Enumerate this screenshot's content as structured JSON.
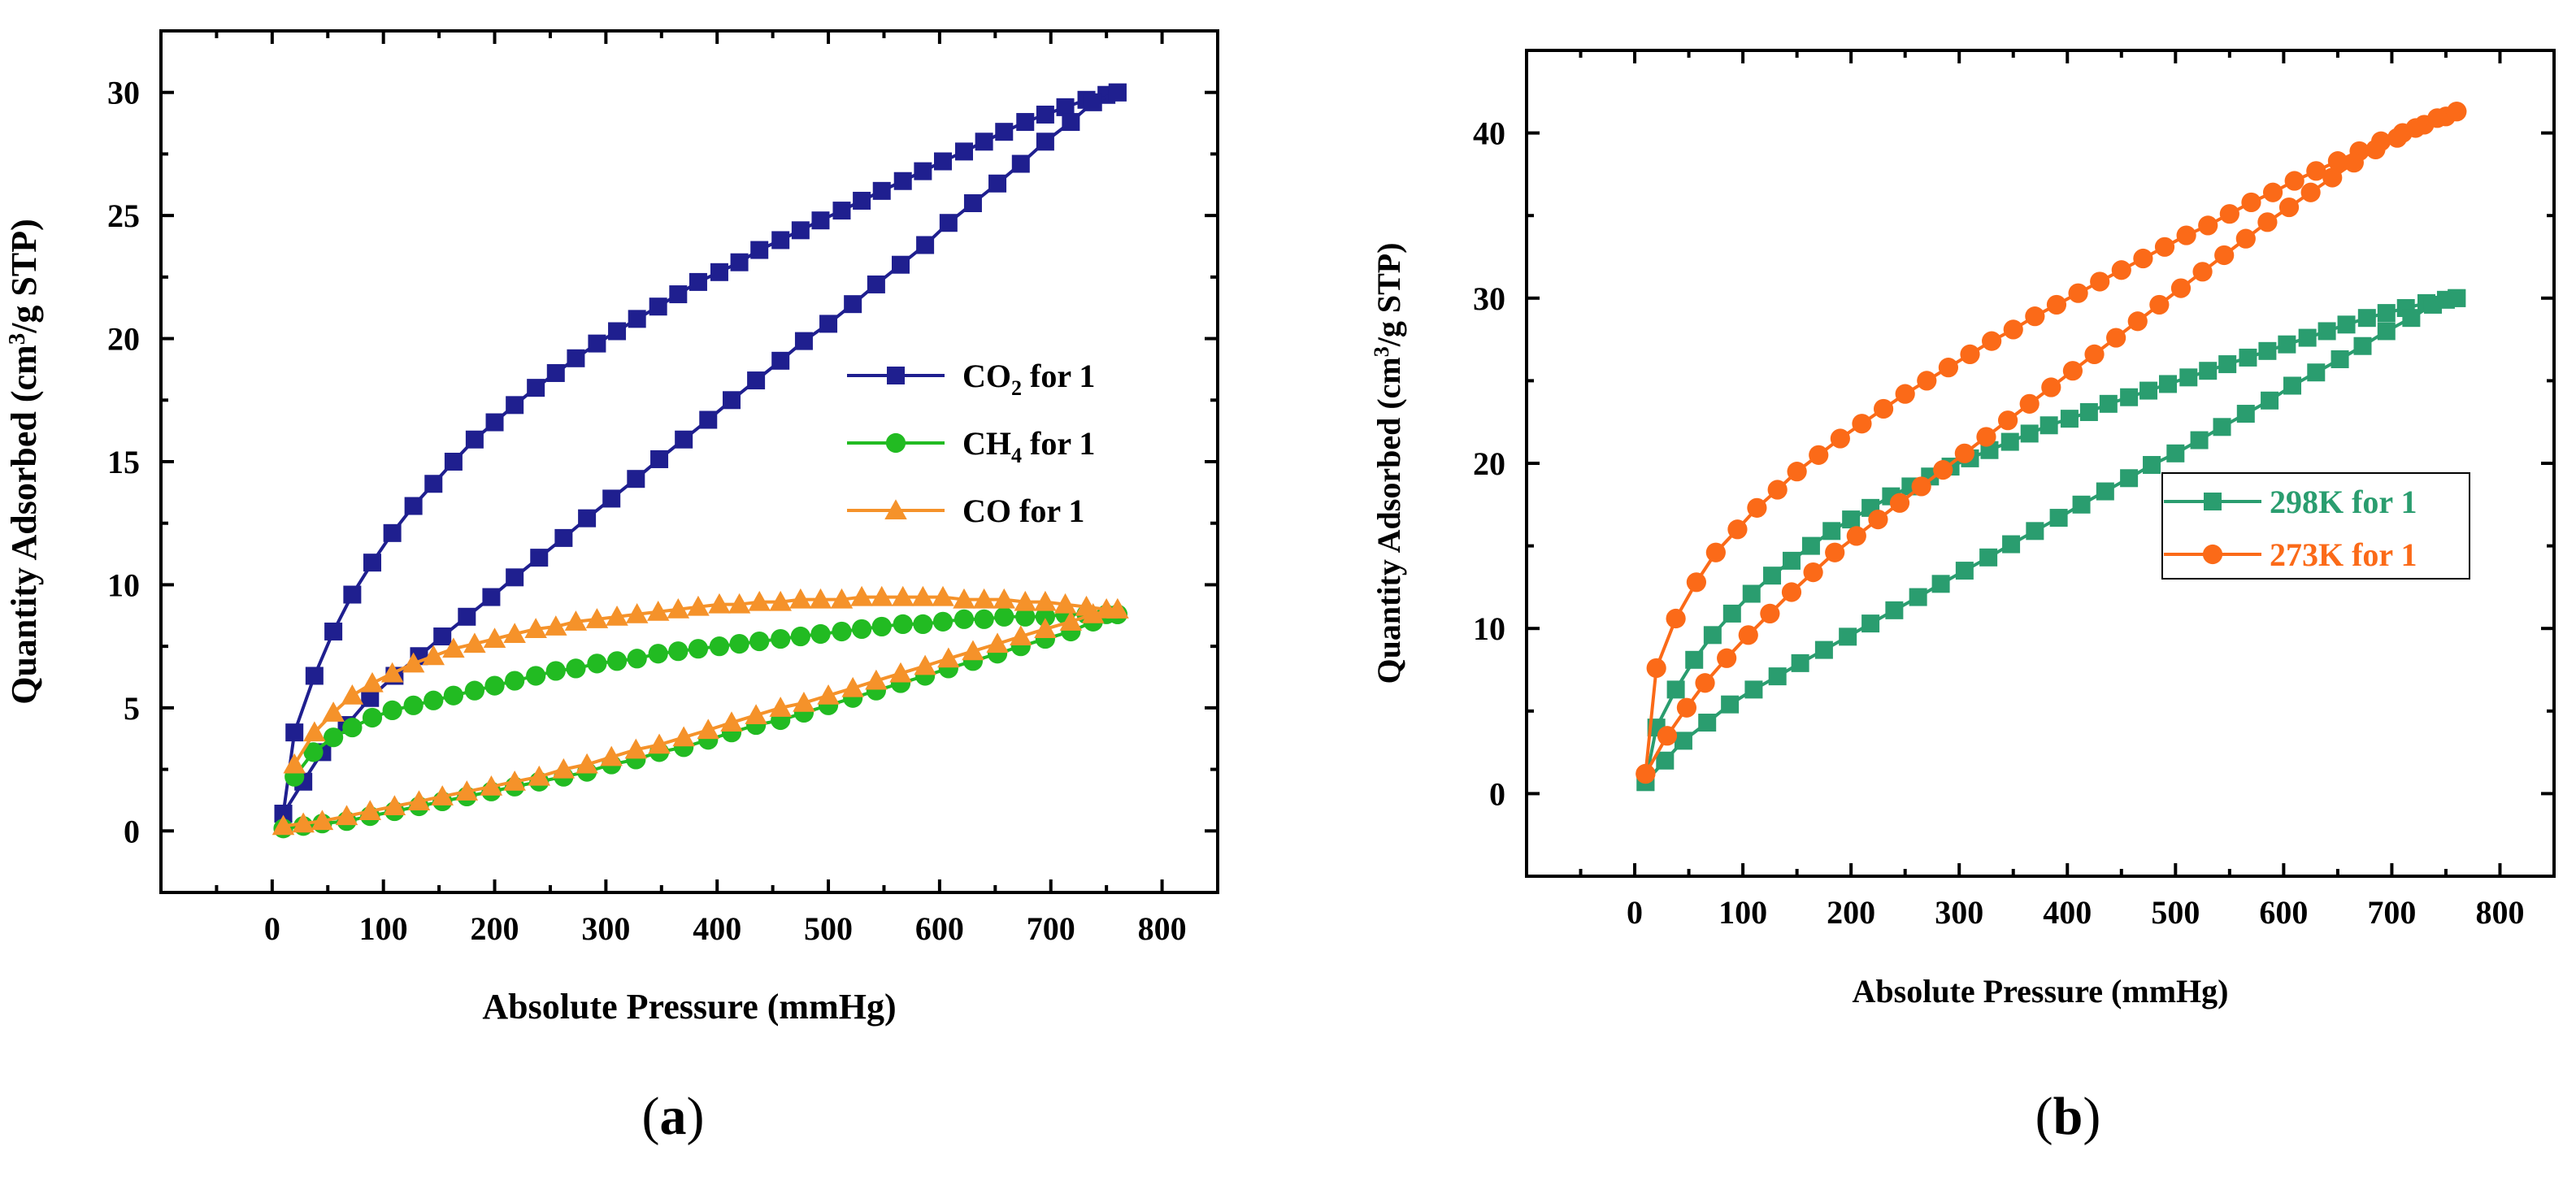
{
  "chart_data": [
    {
      "type": "line",
      "panel_label": "(a)",
      "title": "",
      "xlabel": "Absolute Pressure (mmHg)",
      "ylabel": "Quantity Adsorbed (cm³/g STP)",
      "ylabel_parts": {
        "pre": "Quantity Adsorbed (cm",
        "sup": "3",
        "post": "/g STP)"
      },
      "xlim": [
        -100,
        850
      ],
      "ylim": [
        -2.5,
        32.5
      ],
      "xticks": [
        0,
        100,
        200,
        300,
        400,
        500,
        600,
        700,
        800
      ],
      "yticks": [
        0,
        5,
        10,
        15,
        20,
        25,
        30
      ],
      "legend_position": "center-right",
      "series": [
        {
          "name": "CO2 for 1",
          "legend": {
            "pre": "CO",
            "sub": "2",
            "post": " for 1"
          },
          "marker": "square",
          "color": "#1f1f8f",
          "adsorption": {
            "x": [
              10,
              20,
              38,
              55,
              72,
              90,
              108,
              127,
              145,
              163,
              182,
              200,
              218,
              237,
              255,
              273,
              292,
              310,
              328,
              347,
              365,
              383,
              402,
              420,
              438,
              457,
              475,
              493,
              512,
              530,
              548,
              567,
              585,
              603,
              622,
              640,
              658,
              677,
              695,
              713,
              732,
              750,
              760
            ],
            "y": [
              0.7,
              4.0,
              6.3,
              8.1,
              9.6,
              10.9,
              12.1,
              13.2,
              14.1,
              15.0,
              15.9,
              16.6,
              17.3,
              18.0,
              18.6,
              19.2,
              19.8,
              20.3,
              20.8,
              21.3,
              21.8,
              22.3,
              22.7,
              23.1,
              23.6,
              24.0,
              24.4,
              24.8,
              25.2,
              25.6,
              26.0,
              26.4,
              26.8,
              27.2,
              27.6,
              28.0,
              28.4,
              28.8,
              29.1,
              29.4,
              29.7,
              29.9,
              30.0
            ]
          },
          "desorption": {
            "x": [
              760,
              738,
              718,
              695,
              673,
              652,
              630,
              608,
              587,
              565,
              543,
              522,
              500,
              478,
              457,
              435,
              413,
              392,
              370,
              348,
              327,
              305,
              283,
              262,
              240,
              218,
              197,
              175,
              153,
              132,
              110,
              88,
              67,
              45,
              28,
              10
            ],
            "y": [
              30.0,
              29.6,
              28.8,
              28.0,
              27.1,
              26.3,
              25.5,
              24.7,
              23.8,
              23.0,
              22.2,
              21.4,
              20.6,
              19.9,
              19.1,
              18.3,
              17.5,
              16.7,
              15.9,
              15.1,
              14.3,
              13.5,
              12.7,
              11.9,
              11.1,
              10.3,
              9.5,
              8.7,
              7.9,
              7.1,
              6.3,
              5.4,
              4.3,
              3.2,
              2.0,
              0.7
            ]
          }
        },
        {
          "name": "CH4 for 1",
          "legend": {
            "pre": "CH",
            "sub": "4",
            "post": " for 1"
          },
          "marker": "circle",
          "color": "#22bb22",
          "adsorption": {
            "x": [
              20,
              37,
              55,
              72,
              90,
              108,
              127,
              145,
              163,
              182,
              200,
              218,
              237,
              255,
              273,
              292,
              310,
              328,
              347,
              365,
              383,
              402,
              420,
              438,
              457,
              475,
              493,
              512,
              530,
              548,
              567,
              585,
              603,
              622,
              640,
              658,
              677,
              695,
              713,
              732,
              750,
              760
            ],
            "y": [
              2.2,
              3.2,
              3.8,
              4.2,
              4.6,
              4.9,
              5.1,
              5.3,
              5.5,
              5.7,
              5.9,
              6.1,
              6.3,
              6.5,
              6.6,
              6.8,
              6.9,
              7.0,
              7.2,
              7.3,
              7.4,
              7.5,
              7.6,
              7.7,
              7.8,
              7.9,
              8.0,
              8.1,
              8.2,
              8.3,
              8.4,
              8.4,
              8.5,
              8.6,
              8.6,
              8.7,
              8.7,
              8.7,
              8.8,
              8.8,
              8.8,
              8.8
            ]
          },
          "desorption": {
            "x": [
              760,
              738,
              718,
              695,
              673,
              652,
              630,
              608,
              587,
              565,
              543,
              522,
              500,
              478,
              457,
              435,
              413,
              392,
              370,
              348,
              327,
              305,
              283,
              262,
              240,
              218,
              197,
              175,
              153,
              132,
              110,
              88,
              67,
              45,
              28,
              10
            ],
            "y": [
              8.8,
              8.5,
              8.1,
              7.8,
              7.5,
              7.2,
              6.9,
              6.6,
              6.3,
              6.0,
              5.7,
              5.4,
              5.1,
              4.8,
              4.5,
              4.3,
              4.0,
              3.7,
              3.4,
              3.2,
              2.9,
              2.7,
              2.4,
              2.2,
              2.0,
              1.8,
              1.6,
              1.4,
              1.2,
              1.0,
              0.8,
              0.6,
              0.4,
              0.3,
              0.2,
              0.1
            ]
          }
        },
        {
          "name": "CO for 1",
          "legend": {
            "pre": "CO for 1",
            "sub": "",
            "post": ""
          },
          "marker": "triangle",
          "color": "#f5922a",
          "adsorption": {
            "x": [
              20,
              38,
              55,
              72,
              90,
              108,
              127,
              145,
              163,
              182,
              200,
              218,
              237,
              255,
              273,
              292,
              310,
              328,
              347,
              365,
              383,
              402,
              420,
              438,
              457,
              475,
              493,
              512,
              530,
              548,
              567,
              585,
              603,
              622,
              640,
              658,
              677,
              695,
              713,
              732,
              750,
              760
            ],
            "y": [
              2.7,
              4.0,
              4.8,
              5.5,
              6.0,
              6.4,
              6.8,
              7.1,
              7.4,
              7.6,
              7.8,
              8.0,
              8.2,
              8.3,
              8.5,
              8.6,
              8.7,
              8.8,
              8.9,
              9.0,
              9.1,
              9.2,
              9.2,
              9.3,
              9.3,
              9.4,
              9.4,
              9.4,
              9.5,
              9.5,
              9.5,
              9.5,
              9.5,
              9.4,
              9.4,
              9.4,
              9.3,
              9.3,
              9.2,
              9.1,
              9.0,
              9.0
            ]
          },
          "desorption": {
            "x": [
              760,
              738,
              718,
              695,
              673,
              652,
              630,
              608,
              587,
              565,
              543,
              522,
              500,
              478,
              457,
              435,
              413,
              392,
              370,
              348,
              327,
              305,
              283,
              262,
              240,
              218,
              197,
              175,
              153,
              132,
              110,
              88,
              67,
              45,
              28,
              10
            ],
            "y": [
              9.0,
              8.8,
              8.5,
              8.2,
              7.9,
              7.6,
              7.3,
              7.0,
              6.7,
              6.4,
              6.1,
              5.8,
              5.5,
              5.2,
              5.0,
              4.7,
              4.4,
              4.1,
              3.8,
              3.5,
              3.3,
              3.0,
              2.7,
              2.5,
              2.2,
              2.0,
              1.8,
              1.6,
              1.4,
              1.2,
              1.0,
              0.8,
              0.6,
              0.4,
              0.3,
              0.2
            ]
          }
        }
      ]
    },
    {
      "type": "line",
      "panel_label": "(b)",
      "title": "",
      "xlabel": "Absolute Pressure (mmHg)",
      "ylabel": "Quantity Adsorbed (cm³/g STP)",
      "ylabel_parts": {
        "pre": "Quantity Adsorbed (cm",
        "sup": "3",
        "post": "/g STP)"
      },
      "xlim": [
        -100,
        850
      ],
      "ylim": [
        -5,
        45
      ],
      "xticks": [
        0,
        100,
        200,
        300,
        400,
        500,
        600,
        700,
        800
      ],
      "yticks": [
        0,
        10,
        20,
        30,
        40
      ],
      "legend_position": "center-right",
      "series": [
        {
          "name": "298K for 1",
          "legend": {
            "pre": "298K for 1",
            "sub": "",
            "post": ""
          },
          "marker": "square",
          "color": "#2a9d6f",
          "adsorption": {
            "x": [
              10,
              20,
              38,
              55,
              72,
              90,
              108,
              127,
              145,
              163,
              182,
              200,
              218,
              237,
              255,
              273,
              292,
              310,
              328,
              347,
              365,
              383,
              402,
              420,
              438,
              457,
              475,
              493,
              512,
              530,
              548,
              567,
              585,
              603,
              622,
              640,
              658,
              677,
              695,
              713,
              732,
              750,
              760
            ],
            "y": [
              0.7,
              4.0,
              6.3,
              8.1,
              9.6,
              10.9,
              12.1,
              13.2,
              14.1,
              15.0,
              15.9,
              16.6,
              17.3,
              18.0,
              18.6,
              19.2,
              19.8,
              20.3,
              20.8,
              21.3,
              21.8,
              22.3,
              22.7,
              23.1,
              23.6,
              24.0,
              24.4,
              24.8,
              25.2,
              25.6,
              26.0,
              26.4,
              26.8,
              27.2,
              27.6,
              28.0,
              28.4,
              28.8,
              29.1,
              29.4,
              29.7,
              29.9,
              30.0
            ]
          },
          "desorption": {
            "x": [
              760,
              738,
              718,
              695,
              673,
              652,
              630,
              608,
              587,
              565,
              543,
              522,
              500,
              478,
              457,
              435,
              413,
              392,
              370,
              348,
              327,
              305,
              283,
              262,
              240,
              218,
              197,
              175,
              153,
              132,
              110,
              88,
              67,
              45,
              28,
              10
            ],
            "y": [
              30.0,
              29.6,
              28.8,
              28.0,
              27.1,
              26.3,
              25.5,
              24.7,
              23.8,
              23.0,
              22.2,
              21.4,
              20.6,
              19.9,
              19.1,
              18.3,
              17.5,
              16.7,
              15.9,
              15.1,
              14.3,
              13.5,
              12.7,
              11.9,
              11.1,
              10.3,
              9.5,
              8.7,
              7.9,
              7.1,
              6.3,
              5.4,
              4.3,
              3.2,
              2.0,
              0.7
            ]
          }
        },
        {
          "name": "273K for 1",
          "legend": {
            "pre": "273K for 1",
            "sub": "",
            "post": ""
          },
          "marker": "circle",
          "color": "#fb6a18",
          "adsorption": {
            "x": [
              10,
              20,
              38,
              57,
              75,
              95,
              113,
              132,
              150,
              170,
              190,
              210,
              230,
              250,
              270,
              290,
              310,
              330,
              350,
              370,
              390,
              410,
              430,
              450,
              470,
              490,
              510,
              530,
              550,
              570,
              590,
              610,
              630,
              650,
              670,
              690,
              710,
              730,
              750,
              760
            ],
            "y": [
              1.2,
              7.6,
              10.6,
              12.8,
              14.6,
              16.0,
              17.3,
              18.4,
              19.5,
              20.5,
              21.5,
              22.4,
              23.3,
              24.2,
              25.0,
              25.8,
              26.6,
              27.4,
              28.1,
              28.9,
              29.6,
              30.3,
              31.0,
              31.7,
              32.4,
              33.1,
              33.8,
              34.4,
              35.1,
              35.8,
              36.4,
              37.1,
              37.7,
              38.3,
              38.9,
              39.5,
              40.0,
              40.5,
              41.0,
              41.3
            ]
          },
          "desorption": {
            "x": [
              760,
              742,
              722,
              705,
              685,
              665,
              645,
              625,
              605,
              585,
              565,
              545,
              525,
              505,
              485,
              465,
              445,
              425,
              405,
              385,
              365,
              345,
              325,
              305,
              285,
              265,
              245,
              225,
              205,
              185,
              165,
              145,
              125,
              105,
              85,
              65,
              48,
              30,
              10
            ],
            "y": [
              41.3,
              40.9,
              40.3,
              39.7,
              39.0,
              38.2,
              37.3,
              36.4,
              35.5,
              34.6,
              33.6,
              32.6,
              31.6,
              30.6,
              29.6,
              28.6,
              27.6,
              26.6,
              25.6,
              24.6,
              23.6,
              22.6,
              21.6,
              20.6,
              19.6,
              18.6,
              17.6,
              16.6,
              15.6,
              14.6,
              13.4,
              12.2,
              10.9,
              9.6,
              8.2,
              6.7,
              5.2,
              3.5,
              1.2
            ]
          }
        }
      ]
    }
  ]
}
